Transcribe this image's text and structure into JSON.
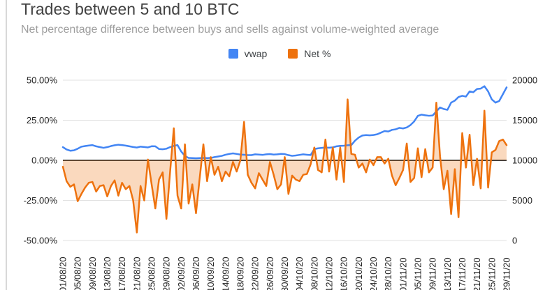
{
  "title": "Trades between 5 and 10 BTC",
  "subtitle": "Net percentage difference between buys and sells against volume-weighted average",
  "legend": [
    {
      "label": "vwap",
      "color": "#4285f4"
    },
    {
      "label": "Net %",
      "color": "#ee720e"
    }
  ],
  "chart_data": {
    "type": "line",
    "title": "Trades between 5 and 10 BTC",
    "subtitle": "Net percentage difference between buys and sells against volume-weighted average",
    "grid": true,
    "legend_position": "top",
    "background": "#ffffff",
    "zero_line_color": "#3d3d3d",
    "gridline_color": "#e2e2e2",
    "axis_label_color": "#222222",
    "x_tick_labels": [
      "01/08/20",
      "05/08/20",
      "09/08/20",
      "13/08/20",
      "17/08/20",
      "21/08/20",
      "25/08/20",
      "29/08/20",
      "02/09/20",
      "06/09/20",
      "10/09/20",
      "14/09/20",
      "18/09/20",
      "22/09/20",
      "26/09/20",
      "30/09/20",
      "04/10/20",
      "08/10/20",
      "12/10/20",
      "16/10/20",
      "20/10/20",
      "24/10/20",
      "28/10/20",
      "01/11/20",
      "05/11/20",
      "09/11/20",
      "13/11/20",
      "17/11/20",
      "21/11/20",
      "25/11/20",
      "29/11/20"
    ],
    "points_per_tick": 4,
    "left_axis": {
      "title": "",
      "ticks": [
        "50.00%",
        "25.00%",
        "0.00%",
        "-25.00%",
        "-50.00%"
      ],
      "max": 50,
      "min": -50
    },
    "right_axis": {
      "title": "",
      "ticks": [
        "20000",
        "15000",
        "10000",
        "5000",
        "0"
      ],
      "max": 20000,
      "min": 0
    },
    "series": [
      {
        "name": "vwap",
        "axis": "right",
        "style": "line",
        "color": "#4285f4",
        "values": [
          11650,
          11350,
          11200,
          11250,
          11450,
          11700,
          11780,
          11850,
          11900,
          11750,
          11650,
          11560,
          11650,
          11780,
          11880,
          11950,
          11900,
          11840,
          11750,
          11660,
          11600,
          11710,
          11660,
          11610,
          11760,
          11750,
          11410,
          11380,
          11450,
          11650,
          11800,
          11900,
          11100,
          10550,
          10300,
          10280,
          10260,
          10280,
          10300,
          10280,
          10300,
          10400,
          10480,
          10560,
          10700,
          10800,
          10870,
          10800,
          10720,
          10700,
          10650,
          10650,
          10750,
          10720,
          10680,
          10750,
          10780,
          10720,
          10750,
          10800,
          10780,
          10650,
          10560,
          10610,
          10680,
          10750,
          10700,
          10660,
          11400,
          11500,
          11550,
          11600,
          11580,
          11620,
          11750,
          11800,
          11830,
          11880,
          11900,
          12450,
          12840,
          13100,
          13150,
          13120,
          13160,
          13250,
          13450,
          13650,
          13600,
          13800,
          13870,
          14050,
          13980,
          14100,
          14400,
          14850,
          15550,
          15700,
          15620,
          15560,
          15600,
          16100,
          16600,
          16400,
          16300,
          17200,
          17450,
          17900,
          18050,
          17950,
          18600,
          18500,
          18900,
          18950,
          19250,
          18600,
          17600,
          17200,
          17400,
          18250,
          19100
        ]
      },
      {
        "name": "Net %",
        "axis": "left",
        "style": "area",
        "color": "#ee720e",
        "fill_opacity": 0.27,
        "values": [
          -4,
          -13,
          -16.5,
          -15,
          -25.5,
          -21,
          -17,
          -14,
          -13.5,
          -19.5,
          -16,
          -15.5,
          -22.5,
          -16,
          -12.5,
          -22,
          -14,
          -18,
          -16,
          -25,
          -45,
          -16,
          -25,
          0.5,
          -15,
          -30,
          -12,
          -7.5,
          -36.5,
          -7,
          20,
          -22,
          -30,
          10,
          -27,
          -15,
          -33,
          -11,
          10,
          -13,
          2,
          -9,
          -4,
          -13,
          -7,
          -10,
          -1,
          -7,
          0,
          24,
          -9,
          -14,
          -17.5,
          -8,
          -12,
          -16,
          -1,
          -9,
          -18,
          -15,
          2,
          -21,
          -9.5,
          -12,
          -13,
          -9,
          -8.5,
          -2.5,
          8,
          -6,
          -7.5,
          13,
          -7,
          8,
          -12,
          8,
          -13.5,
          38,
          4,
          3.5,
          -4.5,
          -2,
          -7.5,
          0.5,
          -3,
          2,
          2,
          -2,
          1,
          -9.5,
          -15.5,
          -11,
          -6,
          10.5,
          -13.5,
          -11,
          7.5,
          -10.5,
          7,
          -7.5,
          -4.5,
          36,
          2.5,
          -18,
          -6.5,
          -33.5,
          -5.5,
          -35.5,
          17,
          -4.5,
          16,
          -15.5,
          1,
          -17.5,
          31,
          -17,
          5,
          6.5,
          12,
          13,
          9.5
        ]
      }
    ]
  }
}
